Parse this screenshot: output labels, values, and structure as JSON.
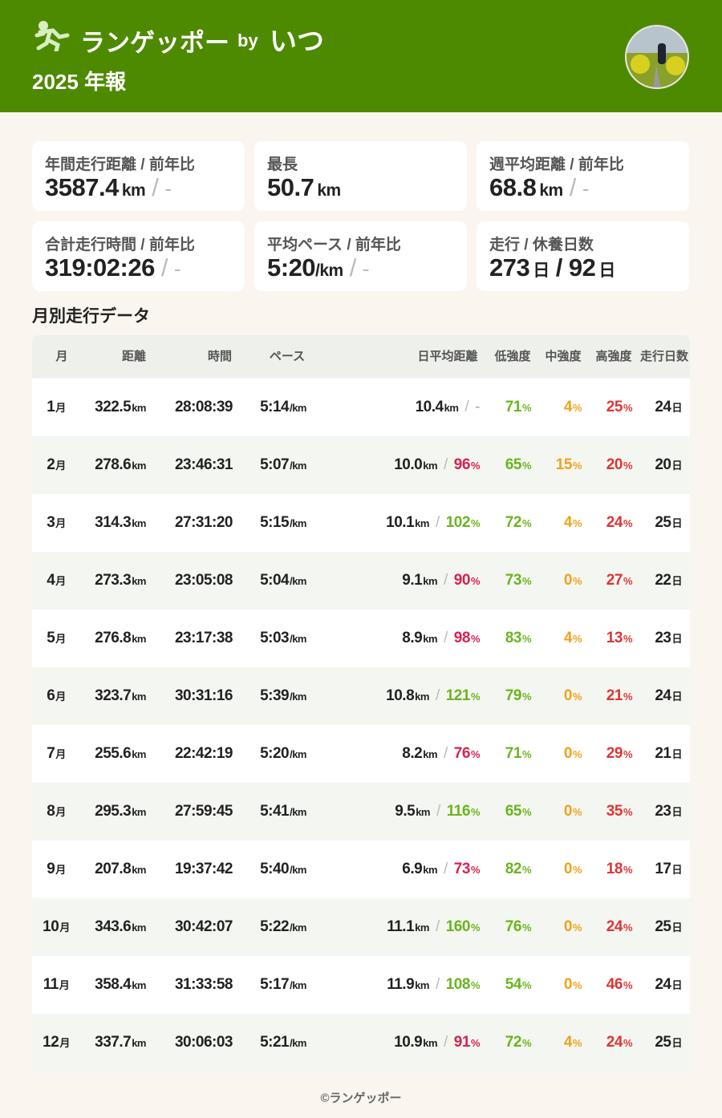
{
  "header": {
    "logo_text": "ランゲッポー",
    "by": "by",
    "user": "いつ",
    "subtitle": "2025 年報"
  },
  "cards": [
    {
      "label": "年間走行距離 / 前年比",
      "value": "3587.4",
      "unit": "km",
      "separator": "/",
      "compare": "-"
    },
    {
      "label": "最長",
      "value": "50.7",
      "unit": "km"
    },
    {
      "label": "週平均距離 / 前年比",
      "value": "68.8",
      "unit": "km",
      "separator": "/",
      "compare": "-"
    },
    {
      "label": "合計走行時間 / 前年比",
      "value": "319:02:26",
      "separator": "/",
      "compare": "-"
    },
    {
      "label": "平均ペース / 前年比",
      "value": "5:20",
      "unit": "/km",
      "separator": "/",
      "compare": "-"
    },
    {
      "label": "走行 / 休養日数",
      "value": "273",
      "unit": "日",
      "separator": "/",
      "value2": "92",
      "unit2": "日"
    }
  ],
  "section_title": "月別走行データ",
  "table": {
    "columns": [
      "月",
      "距離",
      "時間",
      "ペース",
      "日平均距離",
      "低強度",
      "中強度",
      "高強度",
      "走行日数"
    ],
    "units": {
      "month": "月",
      "km": "km",
      "pace": "/km",
      "pct": "%",
      "day": "日",
      "separator": "/"
    },
    "rows": [
      {
        "month": "1",
        "distance": "322.5",
        "time": "28:08:39",
        "pace": "5:14",
        "daily": "10.4",
        "ratio": "-",
        "low": "71",
        "mid": "4",
        "high": "25",
        "days": "24"
      },
      {
        "month": "2",
        "distance": "278.6",
        "time": "23:46:31",
        "pace": "5:07",
        "daily": "10.0",
        "ratio": "96",
        "low": "65",
        "mid": "15",
        "high": "20",
        "days": "20"
      },
      {
        "month": "3",
        "distance": "314.3",
        "time": "27:31:20",
        "pace": "5:15",
        "daily": "10.1",
        "ratio": "102",
        "low": "72",
        "mid": "4",
        "high": "24",
        "days": "25"
      },
      {
        "month": "4",
        "distance": "273.3",
        "time": "23:05:08",
        "pace": "5:04",
        "daily": "9.1",
        "ratio": "90",
        "low": "73",
        "mid": "0",
        "high": "27",
        "days": "22"
      },
      {
        "month": "5",
        "distance": "276.8",
        "time": "23:17:38",
        "pace": "5:03",
        "daily": "8.9",
        "ratio": "98",
        "low": "83",
        "mid": "4",
        "high": "13",
        "days": "23"
      },
      {
        "month": "6",
        "distance": "323.7",
        "time": "30:31:16",
        "pace": "5:39",
        "daily": "10.8",
        "ratio": "121",
        "low": "79",
        "mid": "0",
        "high": "21",
        "days": "24"
      },
      {
        "month": "7",
        "distance": "255.6",
        "time": "22:42:19",
        "pace": "5:20",
        "daily": "8.2",
        "ratio": "76",
        "low": "71",
        "mid": "0",
        "high": "29",
        "days": "21"
      },
      {
        "month": "8",
        "distance": "295.3",
        "time": "27:59:45",
        "pace": "5:41",
        "daily": "9.5",
        "ratio": "116",
        "low": "65",
        "mid": "0",
        "high": "35",
        "days": "23"
      },
      {
        "month": "9",
        "distance": "207.8",
        "time": "19:37:42",
        "pace": "5:40",
        "daily": "6.9",
        "ratio": "73",
        "low": "82",
        "mid": "0",
        "high": "18",
        "days": "17"
      },
      {
        "month": "10",
        "distance": "343.6",
        "time": "30:42:07",
        "pace": "5:22",
        "daily": "11.1",
        "ratio": "160",
        "low": "76",
        "mid": "0",
        "high": "24",
        "days": "25"
      },
      {
        "month": "11",
        "distance": "358.4",
        "time": "31:33:58",
        "pace": "5:17",
        "daily": "11.9",
        "ratio": "108",
        "low": "54",
        "mid": "0",
        "high": "46",
        "days": "24"
      },
      {
        "month": "12",
        "distance": "337.7",
        "time": "30:06:03",
        "pace": "5:21",
        "daily": "10.9",
        "ratio": "91",
        "low": "72",
        "mid": "4",
        "high": "24",
        "days": "25"
      }
    ]
  },
  "footer": "©ランゲッポー"
}
